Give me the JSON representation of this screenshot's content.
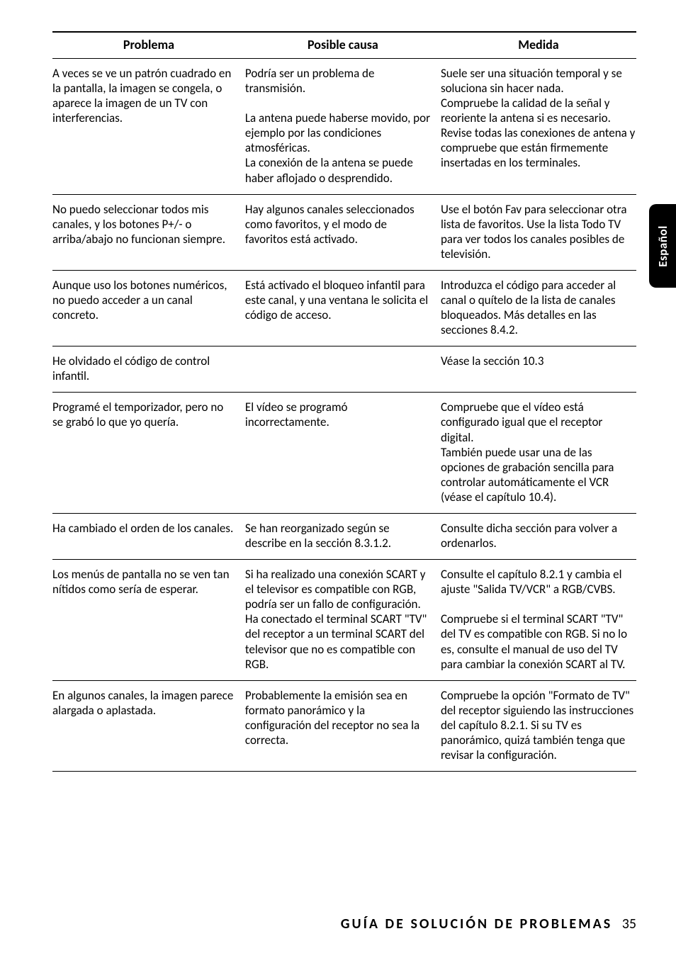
{
  "table": {
    "headers": [
      "Problema",
      "Posible causa",
      "Medida"
    ],
    "rows": [
      {
        "problem": "A veces se ve un patrón cuadrado en la pantalla, la imagen se congela, o aparece la imagen de un TV con interferencias.",
        "cause": "Podría ser un problema de transmisión.\n\nLa antena puede haberse movido, por ejemplo por las condiciones atmosféricas.\nLa conexión de la antena se puede haber aflojado o desprendido.",
        "action": "Suele ser una situación temporal y se soluciona sin hacer nada.\nCompruebe la calidad de la señal y reoriente la antena si es necesario.\nRevise todas las conexiones de antena y compruebe que están firmemente insertadas en los terminales."
      },
      {
        "problem": "No puedo seleccionar todos mis canales, y los botones P+/- o arriba/abajo no funcionan siempre.",
        "cause": "Hay algunos canales seleccionados como favoritos, y el modo de favoritos está activado.",
        "action": "Use el botón Fav para seleccionar otra lista de favoritos. Use la lista Todo TV para ver todos los canales posibles de televisión."
      },
      {
        "problem": "Aunque uso los botones numéricos, no puedo acceder a un canal concreto.",
        "cause": "Está activado el bloqueo infantil para este canal, y una ventana le solicita el código de acceso.",
        "action": "Introduzca el código para acceder al canal o quítelo de la lista de canales bloqueados. Más detalles en las secciones 8.4.2."
      },
      {
        "problem": "He olvidado el código de control infantil.",
        "cause": "",
        "action": "Véase la sección 10.3"
      },
      {
        "problem": "Programé el temporizador, pero no se grabó lo que yo quería.",
        "cause": "El vídeo se programó incorrectamente.",
        "action": "Compruebe que el vídeo está configurado igual que el receptor digital.\nTambién puede usar una de las opciones de grabación sencilla para controlar automáticamente el VCR (véase el capítulo 10.4)."
      },
      {
        "problem": "Ha cambiado el orden de los canales.",
        "cause": "Se han reorganizado según se describe en la sección 8.3.1.2.",
        "action": "Consulte dicha sección para volver a ordenarlos."
      },
      {
        "problem": "Los menús de pantalla no se ven tan nítidos como sería de esperar.",
        "cause": "Si ha realizado una conexión SCART y el televisor es compatible con RGB, podría ser un fallo de configuración.\nHa conectado el terminal SCART \"TV\" del receptor a un terminal SCART del televisor que no es compatible con RGB.",
        "action": "Consulte el capítulo 8.2.1 y cambia el ajuste \"Salida TV/VCR\" a RGB/CVBS.\n\nCompruebe si el terminal SCART \"TV\" del TV es compatible con RGB. Si no lo es, consulte el manual de uso del TV para cambiar la conexión SCART al TV."
      },
      {
        "problem": "En algunos canales, la imagen parece alargada o aplastada.",
        "cause": "Probablemente la emisión sea en formato panorámico y la configuración del receptor no sea la correcta.",
        "action": "Compruebe la opción \"Formato de TV\" del receptor siguiendo las instrucciones del capítulo 8.2.1. Si su TV es panorámico, quizá también tenga que revisar la configuración."
      }
    ]
  },
  "sideTab": "Español",
  "footer": {
    "title": "GUÍA DE SOLUCIÓN DE PROBLEMAS",
    "page": "35"
  }
}
